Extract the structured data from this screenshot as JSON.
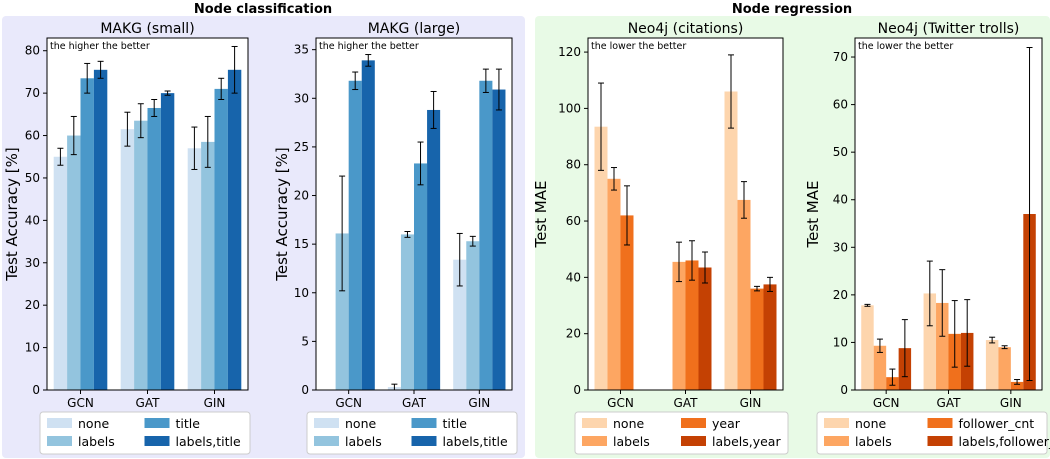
{
  "figure": {
    "sections": [
      {
        "title": "Node classification",
        "bg": "#e9e9fb"
      },
      {
        "title": "Node regression",
        "bg": "#e8fae6"
      }
    ]
  },
  "chart_data": [
    {
      "type": "bar",
      "title": "MAKG (small)",
      "ylabel": "Test Accuracy [%]",
      "annotation": "the higher the better",
      "categories": [
        "GCN",
        "GAT",
        "GIN"
      ],
      "ylim": [
        0,
        83
      ],
      "yticks": [
        0,
        10,
        20,
        30,
        40,
        50,
        60,
        70,
        80
      ],
      "series": [
        {
          "name": "none",
          "color": "#cfe1f2",
          "values": [
            55,
            61.5,
            57
          ],
          "errors": [
            2,
            4,
            5
          ]
        },
        {
          "name": "labels",
          "color": "#93c4de",
          "values": [
            60,
            63.5,
            58.5
          ],
          "errors": [
            4.5,
            4,
            6
          ]
        },
        {
          "name": "title",
          "color": "#4a98c9",
          "values": [
            73.5,
            66.5,
            71
          ],
          "errors": [
            3.5,
            2,
            2.5
          ]
        },
        {
          "name": "labels,title",
          "color": "#1764ab",
          "values": [
            75.5,
            70,
            75.5
          ],
          "errors": [
            2,
            0.5,
            5.5
          ]
        }
      ],
      "legend": {
        "placement": "bottom",
        "columns": 2
      }
    },
    {
      "type": "bar",
      "title": "MAKG (large)",
      "ylabel": "Test Accuracy [%]",
      "annotation": "the higher the better",
      "categories": [
        "GCN",
        "GAT",
        "GIN"
      ],
      "ylim": [
        0,
        36.2
      ],
      "yticks": [
        0,
        5,
        10,
        15,
        20,
        25,
        30,
        35
      ],
      "series": [
        {
          "name": "none",
          "color": "#cfe1f2",
          "values": [
            0,
            0.3,
            13.4
          ],
          "errors": [
            0,
            0.3,
            2.7
          ]
        },
        {
          "name": "labels",
          "color": "#93c4de",
          "values": [
            16.1,
            16,
            15.3
          ],
          "errors": [
            5.9,
            0.3,
            0.5
          ]
        },
        {
          "name": "title",
          "color": "#4a98c9",
          "values": [
            31.8,
            23.3,
            31.8
          ],
          "errors": [
            0.9,
            2.2,
            1.2
          ]
        },
        {
          "name": "labels,title",
          "color": "#1764ab",
          "values": [
            33.9,
            28.8,
            30.9
          ],
          "errors": [
            0.6,
            1.9,
            2.1
          ]
        }
      ],
      "legend": {
        "placement": "bottom",
        "columns": 2
      }
    },
    {
      "type": "bar",
      "title": "Neo4j (citations)",
      "ylabel": "Test MAE",
      "annotation": "the lower the better",
      "categories": [
        "GCN",
        "GAT",
        "GIN"
      ],
      "ylim": [
        0,
        125
      ],
      "yticks": [
        0,
        20,
        40,
        60,
        80,
        100,
        120
      ],
      "series": [
        {
          "name": "none",
          "color": "#fdd5ad",
          "values": [
            93.5,
            null,
            106
          ],
          "errors": [
            15.5,
            null,
            13
          ]
        },
        {
          "name": "labels",
          "color": "#fda662",
          "values": [
            75,
            45.5,
            67.5
          ],
          "errors": [
            4,
            7,
            6.5
          ]
        },
        {
          "name": "year",
          "color": "#f0701c",
          "values": [
            62,
            46,
            36
          ],
          "errors": [
            10.5,
            7,
            0.8
          ]
        },
        {
          "name": "labels,year",
          "color": "#c44103",
          "values": [
            null,
            43.5,
            37.5
          ],
          "errors": [
            null,
            5.5,
            2.5
          ]
        }
      ],
      "legend": {
        "placement": "bottom",
        "columns": 2
      }
    },
    {
      "type": "bar",
      "title": "Neo4j (Twitter trolls)",
      "ylabel": "Test MAE",
      "annotation": "the lower the better",
      "categories": [
        "GCN",
        "GAT",
        "GIN"
      ],
      "ylim": [
        0,
        74
      ],
      "yticks": [
        0,
        10,
        20,
        30,
        40,
        50,
        60,
        70
      ],
      "series": [
        {
          "name": "none",
          "color": "#fdd5ad",
          "values": [
            17.8,
            20.3,
            10.5
          ],
          "errors": [
            0.2,
            6.8,
            0.6
          ]
        },
        {
          "name": "labels",
          "color": "#fda662",
          "values": [
            9.3,
            18.3,
            9
          ],
          "errors": [
            1.4,
            7,
            0.3
          ]
        },
        {
          "name": "follower_cnt",
          "color": "#f0701c",
          "values": [
            2.7,
            11.8,
            1.7
          ],
          "errors": [
            1.7,
            7,
            0.5
          ]
        },
        {
          "name": "labels,follower_cnt",
          "color": "#c44103",
          "values": [
            8.8,
            12,
            37
          ],
          "errors": [
            6,
            7,
            35
          ]
        }
      ],
      "legend": {
        "placement": "bottom",
        "columns": 2
      }
    }
  ]
}
